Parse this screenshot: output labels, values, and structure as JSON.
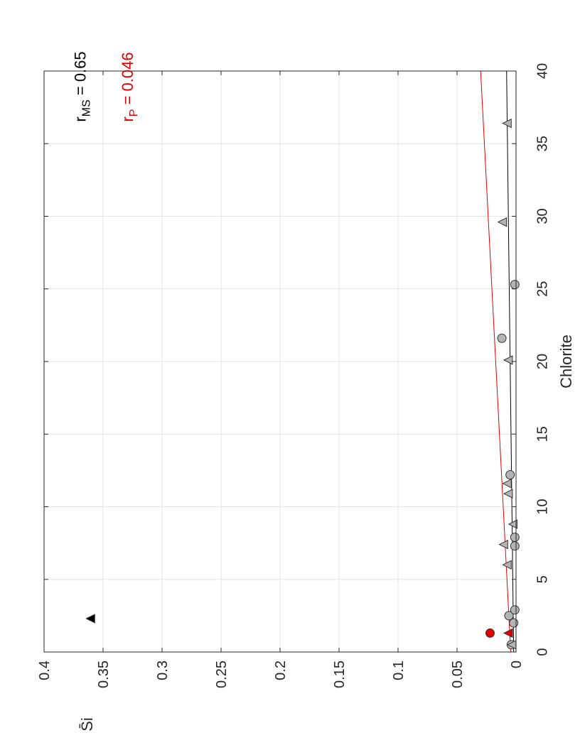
{
  "chart_data": {
    "type": "scatter",
    "orientation": "rotated 90 degrees counter-clockwise",
    "xlabel": "Chlorite",
    "ylabel": "S̄i",
    "xlim": [
      0,
      40
    ],
    "ylim": [
      0,
      0.4
    ],
    "x_ticks": [
      "0",
      "5",
      "10",
      "15",
      "20",
      "25",
      "30",
      "35",
      "40"
    ],
    "y_ticks": [
      "0",
      "0.05",
      "0.1",
      "0.15",
      "0.2",
      "0.25",
      "0.3",
      "0.35",
      "0.4"
    ],
    "grid": true,
    "series": [
      {
        "marker": "circle",
        "color": "#b4b4b4",
        "points": [
          {
            "x": 0.5,
            "y": 0.004
          },
          {
            "x": 2.0,
            "y": 0.002
          },
          {
            "x": 2.5,
            "y": 0.006
          },
          {
            "x": 2.9,
            "y": 0.001
          },
          {
            "x": 7.3,
            "y": 0.001
          },
          {
            "x": 7.9,
            "y": 0.001
          },
          {
            "x": 12.2,
            "y": 0.005
          },
          {
            "x": 21.6,
            "y": 0.012
          },
          {
            "x": 25.3,
            "y": 0.001
          }
        ]
      },
      {
        "marker": "triangle",
        "color": "#b4b4b4",
        "points": [
          {
            "x": 0.5,
            "y": 0.003
          },
          {
            "x": 6.0,
            "y": 0.007
          },
          {
            "x": 7.4,
            "y": 0.01
          },
          {
            "x": 8.8,
            "y": 0.002
          },
          {
            "x": 10.9,
            "y": 0.006
          },
          {
            "x": 11.6,
            "y": 0.007
          },
          {
            "x": 20.1,
            "y": 0.006
          },
          {
            "x": 29.6,
            "y": 0.011
          },
          {
            "x": 36.4,
            "y": 0.007
          }
        ]
      },
      {
        "marker": "circle",
        "color": "#e00000",
        "points": [
          {
            "x": 1.3,
            "y": 0.022
          }
        ]
      },
      {
        "marker": "triangle",
        "color": "#e00000",
        "points": [
          {
            "x": 1.3,
            "y": 0.006
          }
        ]
      },
      {
        "marker": "triangle",
        "color": "#000000",
        "points": [
          {
            "x": 2.3,
            "y": 0.36
          }
        ]
      }
    ],
    "fit_lines": [
      {
        "color": "#000000",
        "x": [
          0,
          40
        ],
        "y": [
          0.002,
          0.008
        ]
      },
      {
        "color": "#e00000",
        "x": [
          0,
          40
        ],
        "y": [
          0.0045,
          0.03
        ]
      }
    ],
    "annotations": [
      {
        "text": "r",
        "subscript": "MS",
        "suffix": " = 0.65",
        "color": "#000000",
        "x": 36.5,
        "y": 0.36
      },
      {
        "text": "r",
        "subscript": "P",
        "suffix": " = 0.046",
        "color": "#e00000",
        "x": 36.5,
        "y": 0.32
      }
    ]
  }
}
